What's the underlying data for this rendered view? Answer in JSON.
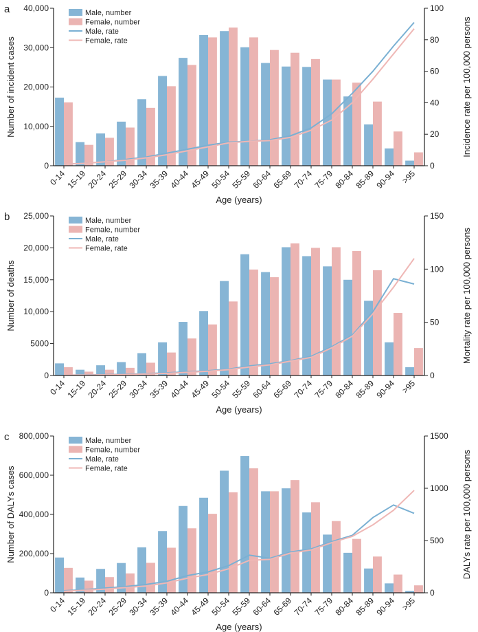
{
  "colors": {
    "male_bar": "#86b5d5",
    "female_bar": "#ebb4b2",
    "male_line": "#7ab0d3",
    "female_line": "#efb7b5"
  },
  "chart_data": [
    {
      "type": "bar",
      "panel": "a",
      "xlabel": "Age (years)",
      "ylabel": "Number of incident cases",
      "y2label": "Incidence rate per 100,000 persons",
      "ylim": [
        0,
        40000
      ],
      "yticks": [
        "0",
        "10,000",
        "20,000",
        "30,000",
        "40,000"
      ],
      "y2lim": [
        0,
        100
      ],
      "y2ticks": [
        "0",
        "20",
        "40",
        "60",
        "80",
        "100"
      ],
      "legend": [
        "Male, number",
        "Female, number",
        "Male, rate",
        "Female, rate"
      ],
      "categories": [
        "0-14",
        "15-19",
        "20-24",
        "25-29",
        "30-34",
        "35-39",
        "40-44",
        "45-49",
        "50-54",
        "55-59",
        "60-64",
        "65-69",
        "70-74",
        "75-79",
        "80-84",
        "85-89",
        "90-94",
        ">95"
      ],
      "series": [
        {
          "name": "Male, number",
          "kind": "bar",
          "values": [
            17300,
            6000,
            8200,
            11200,
            16900,
            22800,
            27400,
            33200,
            34200,
            30100,
            26100,
            25200,
            25100,
            21900,
            17600,
            10500,
            4400,
            1300
          ]
        },
        {
          "name": "Female, number",
          "kind": "bar",
          "values": [
            16100,
            5300,
            7100,
            9700,
            14700,
            20200,
            25600,
            32600,
            35100,
            32600,
            29400,
            28700,
            27100,
            21900,
            21100,
            16300,
            8700,
            3400
          ]
        },
        {
          "name": "Male, rate",
          "kind": "line",
          "axis": "right",
          "values": [
            1,
            1.5,
            2.5,
            4,
            5.5,
            8,
            10.5,
            13,
            15,
            15.5,
            16.5,
            19,
            24,
            33,
            46,
            60,
            76,
            91
          ]
        },
        {
          "name": "Female, rate",
          "kind": "line",
          "axis": "right",
          "values": [
            1,
            1.5,
            2.5,
            3.5,
            5,
            7,
            9.5,
            12,
            14.5,
            15.5,
            16,
            18,
            22.5,
            29,
            40,
            55,
            71,
            87
          ]
        }
      ]
    },
    {
      "type": "bar",
      "panel": "b",
      "xlabel": "Age (years)",
      "ylabel": "Number of deaths",
      "y2label": "Mortality rate per 100,000 persons",
      "ylim": [
        0,
        25000
      ],
      "yticks": [
        "0",
        "5000",
        "10,000",
        "15,000",
        "20,000",
        "25,000"
      ],
      "y2lim": [
        0,
        150
      ],
      "y2ticks": [
        "0",
        "50",
        "100",
        "150"
      ],
      "legend": [
        "Male, number",
        "Female, number",
        "Male, rate",
        "Female, rate"
      ],
      "categories": [
        "0-14",
        "15-19",
        "20-24",
        "25-29",
        "30-34",
        "35-39",
        "40-44",
        "45-49",
        "50-54",
        "55-59",
        "60-64",
        "65-69",
        "70-74",
        "75-79",
        "80-84",
        "85-89",
        "90-94",
        ">95"
      ],
      "series": [
        {
          "name": "Male, number",
          "kind": "bar",
          "values": [
            1900,
            900,
            1600,
            2100,
            3500,
            5200,
            8400,
            10100,
            14800,
            19000,
            16200,
            20100,
            18700,
            17100,
            15000,
            11700,
            5200,
            1300
          ]
        },
        {
          "name": "Female, number",
          "kind": "bar",
          "values": [
            1300,
            600,
            900,
            1200,
            2000,
            3600,
            5800,
            8000,
            11600,
            16600,
            15400,
            20700,
            20000,
            20100,
            19500,
            16500,
            9800,
            4300
          ]
        },
        {
          "name": "Male, rate",
          "kind": "line",
          "axis": "right",
          "values": [
            0.3,
            0.5,
            0.8,
            1.2,
            1.8,
            2.5,
            3.5,
            4.5,
            6,
            9,
            11,
            14,
            18,
            27,
            38,
            60,
            91,
            86
          ]
        },
        {
          "name": "Female, rate",
          "kind": "line",
          "axis": "right",
          "values": [
            0.3,
            0.4,
            0.6,
            0.9,
            1.4,
            2,
            3,
            4,
            5.5,
            8,
            10,
            13.5,
            17,
            26,
            37,
            58,
            83,
            110
          ]
        }
      ]
    },
    {
      "type": "bar",
      "panel": "c",
      "xlabel": "Age (years)",
      "ylabel": "Number of DALYs cases",
      "y2label": "DALYs rate per 100,000 persons",
      "ylim": [
        0,
        800000
      ],
      "yticks": [
        "0",
        "200,000",
        "400,000",
        "600,000",
        "800,000"
      ],
      "y2lim": [
        0,
        1500
      ],
      "y2ticks": [
        "0",
        "500",
        "1000",
        "1500"
      ],
      "legend": [
        "Male, number",
        "Female, number",
        "Male, rate",
        "Female, rate"
      ],
      "categories": [
        "0-14",
        "15-19",
        "20-24",
        "25-29",
        "30-34",
        "35-39",
        "40-44",
        "45-49",
        "50-54",
        "55-59",
        "60-64",
        "65-69",
        "70-74",
        "75-79",
        "80-84",
        "85-89",
        "90-94",
        ">95"
      ],
      "series": [
        {
          "name": "Male, number",
          "kind": "bar",
          "values": [
            180000,
            78000,
            122000,
            152000,
            232000,
            315000,
            443000,
            485000,
            623000,
            698000,
            518000,
            533000,
            410000,
            297000,
            204000,
            124000,
            48000,
            10000
          ]
        },
        {
          "name": "Female, number",
          "kind": "bar",
          "values": [
            127000,
            62000,
            80000,
            99000,
            153000,
            230000,
            329000,
            403000,
            513000,
            635000,
            518000,
            575000,
            462000,
            366000,
            275000,
            185000,
            93000,
            38000
          ]
        },
        {
          "name": "Male, rate",
          "kind": "line",
          "axis": "right",
          "values": [
            20,
            30,
            45,
            60,
            80,
            110,
            165,
            200,
            260,
            360,
            330,
            390,
            420,
            490,
            550,
            720,
            840,
            760
          ]
        },
        {
          "name": "Female, rate",
          "kind": "line",
          "axis": "right",
          "values": [
            15,
            25,
            35,
            50,
            65,
            95,
            140,
            175,
            230,
            310,
            320,
            380,
            410,
            480,
            540,
            650,
            790,
            980
          ]
        }
      ]
    }
  ]
}
